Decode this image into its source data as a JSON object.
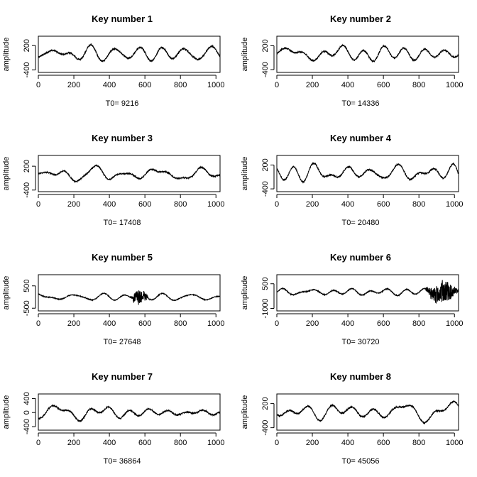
{
  "chart_data": [
    {
      "type": "line",
      "title": "Key number 1",
      "xlabel": "T0= 9216",
      "ylabel": "amplitude",
      "xlim": [
        0,
        1023
      ],
      "ylim": [
        -460,
        430
      ],
      "xticks": [
        0,
        200,
        400,
        600,
        800,
        1000
      ],
      "yticks": [
        -400,
        200
      ],
      "series": [
        {
          "seed": 11,
          "amp": 165,
          "burst": null
        }
      ]
    },
    {
      "type": "line",
      "title": "Key number 2",
      "xlabel": "T0= 14336",
      "ylabel": "amplitude",
      "xlim": [
        0,
        1023
      ],
      "ylim": [
        -470,
        440
      ],
      "xticks": [
        0,
        200,
        400,
        600,
        800,
        1000
      ],
      "yticks": [
        -400,
        200
      ],
      "series": [
        {
          "seed": 22,
          "amp": 165,
          "burst": null
        }
      ]
    },
    {
      "type": "line",
      "title": "Key number 3",
      "xlabel": "T0= 17408",
      "ylabel": "amplitude",
      "xlim": [
        0,
        1023
      ],
      "ylim": [
        -440,
        470
      ],
      "xticks": [
        0,
        200,
        400,
        600,
        800,
        1000
      ],
      "yticks": [
        -400,
        200
      ],
      "series": [
        {
          "seed": 33,
          "amp": 140,
          "burst": null
        }
      ]
    },
    {
      "type": "line",
      "title": "Key number 4",
      "xlabel": "T0= 20480",
      "ylabel": "amplitude",
      "xlim": [
        0,
        1023
      ],
      "ylim": [
        -470,
        440
      ],
      "xticks": [
        0,
        200,
        400,
        600,
        800,
        1000
      ],
      "yticks": [
        -400,
        200
      ],
      "series": [
        {
          "seed": 44,
          "amp": 165,
          "burst": null
        }
      ]
    },
    {
      "type": "line",
      "title": "Key number 5",
      "xlabel": "T0= 27648",
      "ylabel": "amplitude",
      "xlim": [
        0,
        1023
      ],
      "ylim": [
        -620,
        1000
      ],
      "xticks": [
        0,
        200,
        400,
        600,
        800,
        1000
      ],
      "yticks": [
        -500,
        500
      ],
      "series": [
        {
          "seed": 55,
          "amp": 150,
          "burst": [
            520,
            620,
            380
          ]
        }
      ]
    },
    {
      "type": "line",
      "title": "Key number 6",
      "xlabel": "T0= 30720",
      "ylabel": "amplitude",
      "xlim": [
        0,
        1023
      ],
      "ylim": [
        -1150,
        1050
      ],
      "xticks": [
        0,
        200,
        400,
        600,
        800,
        1000
      ],
      "yticks": [
        -1000,
        500
      ],
      "series": [
        {
          "seed": 66,
          "amp": 240,
          "burst": [
            840,
            1023,
            650
          ]
        }
      ]
    },
    {
      "type": "line",
      "title": "Key number 7",
      "xlabel": "T0= 36864",
      "ylabel": "amplitude",
      "xlim": [
        0,
        1023
      ],
      "ylim": [
        -500,
        530
      ],
      "xticks": [
        0,
        200,
        400,
        600,
        800,
        1000
      ],
      "yticks": [
        -400,
        0,
        400
      ],
      "series": [
        {
          "seed": 77,
          "amp": 175,
          "burst": null
        }
      ]
    },
    {
      "type": "line",
      "title": "Key number 8",
      "xlabel": "T0= 45056",
      "ylabel": "amplitude",
      "xlim": [
        0,
        1023
      ],
      "ylim": [
        -460,
        440
      ],
      "xticks": [
        0,
        200,
        400,
        600,
        800,
        1000
      ],
      "yticks": [
        -400,
        200
      ],
      "series": [
        {
          "seed": 88,
          "amp": 160,
          "burst": null
        }
      ]
    }
  ],
  "style": {
    "line_color": "#000000",
    "background": "#ffffff"
  }
}
